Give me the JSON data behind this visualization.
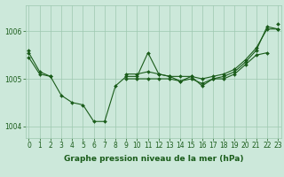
{
  "xlabel": "Graphe pression niveau de la mer (hPa)",
  "x_values": [
    0,
    1,
    2,
    3,
    4,
    5,
    6,
    7,
    8,
    9,
    10,
    11,
    12,
    13,
    14,
    15,
    16,
    17,
    18,
    19,
    20,
    21,
    22,
    23
  ],
  "series": [
    {
      "y": [
        1005.55,
        1005.15,
        1005.05,
        1004.65,
        1004.5,
        1004.45,
        1004.1,
        1004.1,
        1004.85,
        1005.05,
        1005.05,
        1005.55,
        1005.1,
        1005.05,
        1004.95,
        1005.05,
        1004.85,
        1005.0,
        1005.05,
        1005.15,
        1005.35,
        1005.6,
        1006.1,
        1006.05
      ],
      "color": "#1a5c1a",
      "linewidth": 0.8,
      "marker": "D",
      "markersize": 2.0
    },
    {
      "y": [
        1005.6,
        null,
        null,
        null,
        null,
        null,
        null,
        null,
        null,
        null,
        null,
        null,
        null,
        null,
        null,
        null,
        null,
        null,
        null,
        null,
        null,
        null,
        null,
        1006.15
      ],
      "color": "#1a5c1a",
      "linewidth": 0.8,
      "marker": "D",
      "markersize": 2.0
    },
    {
      "y": [
        1005.45,
        1005.1,
        1005.05,
        null,
        null,
        null,
        null,
        null,
        null,
        1005.1,
        1005.1,
        1005.15,
        1005.1,
        1005.05,
        1005.05,
        1005.05,
        1005.0,
        1005.05,
        1005.1,
        1005.2,
        1005.4,
        1005.65,
        1006.05,
        1006.05
      ],
      "color": "#1a5c1a",
      "linewidth": 0.8,
      "marker": "D",
      "markersize": 2.0
    },
    {
      "y": [
        null,
        null,
        null,
        null,
        null,
        null,
        null,
        null,
        null,
        1005.0,
        1005.0,
        1005.0,
        1005.0,
        1005.0,
        1004.95,
        1005.0,
        1004.9,
        1005.0,
        1005.0,
        1005.1,
        1005.3,
        1005.5,
        1005.55,
        null
      ],
      "color": "#1a5c1a",
      "linewidth": 0.8,
      "marker": "D",
      "markersize": 2.0
    }
  ],
  "ylim": [
    1003.75,
    1006.55
  ],
  "yticks": [
    1004,
    1005,
    1006
  ],
  "xlim": [
    -0.3,
    23.3
  ],
  "xticks": [
    0,
    1,
    2,
    3,
    4,
    5,
    6,
    7,
    8,
    9,
    10,
    11,
    12,
    13,
    14,
    15,
    16,
    17,
    18,
    19,
    20,
    21,
    22,
    23
  ],
  "bg_color": "#cce8da",
  "grid_color": "#9dc8b0",
  "line_color": "#1a5c1a",
  "label_color": "#1a5c1a",
  "xlabel_fontsize": 6.5,
  "tick_fontsize": 5.5,
  "xlabel_fontweight": "bold"
}
